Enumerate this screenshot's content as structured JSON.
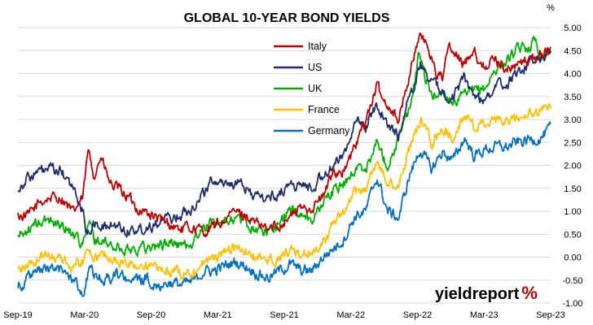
{
  "chart_data": {
    "type": "line",
    "title": "GLOBAL 10-YEAR BOND YIELDS",
    "y_unit": "%",
    "x_tick_labels": [
      "Sep-19",
      "Mar-20",
      "Sep-20",
      "Mar-21",
      "Sep-21",
      "Mar-22",
      "Sep-22",
      "Mar-23",
      "Sep-23"
    ],
    "y_ticks": [
      "-1.00",
      "-0.50",
      "0.00",
      "0.50",
      "1.00",
      "1.50",
      "2.00",
      "2.50",
      "3.00",
      "3.50",
      "4.00",
      "4.50",
      "5.00"
    ],
    "ylim": [
      -1.0,
      5.0
    ],
    "xlim": [
      "2019-09-01",
      "2023-09-30"
    ],
    "grid": "horizontal",
    "legend_position": "top-center",
    "watermark": "yieldreport %",
    "series": [
      {
        "name": "Italy",
        "color": "#c00000",
        "points": [
          [
            "2019-09-01",
            0.9
          ],
          [
            "2019-10-01",
            0.9
          ],
          [
            "2019-11-01",
            1.2
          ],
          [
            "2019-12-01",
            1.3
          ],
          [
            "2020-01-01",
            1.3
          ],
          [
            "2020-02-01",
            0.95
          ],
          [
            "2020-03-01",
            1.3
          ],
          [
            "2020-03-15",
            2.3
          ],
          [
            "2020-04-01",
            1.8
          ],
          [
            "2020-04-20",
            2.2
          ],
          [
            "2020-05-15",
            1.6
          ],
          [
            "2020-06-01",
            1.5
          ],
          [
            "2020-07-01",
            1.35
          ],
          [
            "2020-08-01",
            1.05
          ],
          [
            "2020-09-01",
            0.95
          ],
          [
            "2020-10-01",
            0.8
          ],
          [
            "2020-11-01",
            0.7
          ],
          [
            "2020-12-01",
            0.6
          ],
          [
            "2021-01-01",
            0.65
          ],
          [
            "2021-02-01",
            0.55
          ],
          [
            "2021-03-01",
            0.65
          ],
          [
            "2021-04-01",
            0.8
          ],
          [
            "2021-05-01",
            1.0
          ],
          [
            "2021-06-01",
            0.9
          ],
          [
            "2021-07-01",
            0.7
          ],
          [
            "2021-08-01",
            0.6
          ],
          [
            "2021-09-01",
            0.7
          ],
          [
            "2021-10-01",
            0.9
          ],
          [
            "2021-11-01",
            1.05
          ],
          [
            "2021-12-01",
            1.1
          ],
          [
            "2022-01-01",
            1.3
          ],
          [
            "2022-02-01",
            1.9
          ],
          [
            "2022-03-01",
            1.85
          ],
          [
            "2022-04-01",
            2.4
          ],
          [
            "2022-05-01",
            3.0
          ],
          [
            "2022-06-01",
            3.7
          ],
          [
            "2022-06-20",
            3.4
          ],
          [
            "2022-07-01",
            3.35
          ],
          [
            "2022-08-01",
            3.0
          ],
          [
            "2022-08-20",
            3.6
          ],
          [
            "2022-09-01",
            4.0
          ],
          [
            "2022-09-25",
            4.8
          ],
          [
            "2022-10-20",
            4.65
          ],
          [
            "2022-11-15",
            4.0
          ],
          [
            "2022-12-01",
            3.9
          ],
          [
            "2022-12-20",
            4.6
          ],
          [
            "2023-01-01",
            4.4
          ],
          [
            "2023-02-01",
            4.2
          ],
          [
            "2023-03-01",
            4.6
          ],
          [
            "2023-03-20",
            4.1
          ],
          [
            "2023-04-01",
            4.2
          ],
          [
            "2023-05-01",
            4.3
          ],
          [
            "2023-06-01",
            4.1
          ],
          [
            "2023-07-01",
            4.2
          ],
          [
            "2023-08-01",
            4.3
          ],
          [
            "2023-09-01",
            4.4
          ],
          [
            "2023-09-30",
            4.55
          ]
        ]
      },
      {
        "name": "US",
        "color": "#1f2d6b",
        "points": [
          [
            "2019-09-01",
            1.5
          ],
          [
            "2019-10-01",
            1.75
          ],
          [
            "2019-11-01",
            1.85
          ],
          [
            "2019-12-01",
            1.9
          ],
          [
            "2020-01-01",
            1.85
          ],
          [
            "2020-02-01",
            1.5
          ],
          [
            "2020-03-01",
            1.0
          ],
          [
            "2020-03-10",
            0.55
          ],
          [
            "2020-04-01",
            0.7
          ],
          [
            "2020-05-01",
            0.65
          ],
          [
            "2020-06-01",
            0.7
          ],
          [
            "2020-07-01",
            0.6
          ],
          [
            "2020-08-01",
            0.6
          ],
          [
            "2020-09-01",
            0.68
          ],
          [
            "2020-10-01",
            0.8
          ],
          [
            "2020-11-01",
            0.85
          ],
          [
            "2020-12-01",
            0.92
          ],
          [
            "2021-01-01",
            1.1
          ],
          [
            "2021-02-01",
            1.4
          ],
          [
            "2021-03-01",
            1.7
          ],
          [
            "2021-04-01",
            1.63
          ],
          [
            "2021-05-01",
            1.6
          ],
          [
            "2021-06-01",
            1.5
          ],
          [
            "2021-07-01",
            1.3
          ],
          [
            "2021-08-01",
            1.28
          ],
          [
            "2021-09-01",
            1.4
          ],
          [
            "2021-10-01",
            1.6
          ],
          [
            "2021-11-01",
            1.55
          ],
          [
            "2021-12-01",
            1.5
          ],
          [
            "2022-01-01",
            1.8
          ],
          [
            "2022-02-01",
            1.95
          ],
          [
            "2022-03-01",
            2.3
          ],
          [
            "2022-04-01",
            2.9
          ],
          [
            "2022-05-01",
            2.85
          ],
          [
            "2022-06-01",
            3.3
          ],
          [
            "2022-06-20",
            3.1
          ],
          [
            "2022-07-01",
            2.8
          ],
          [
            "2022-08-01",
            2.7
          ],
          [
            "2022-09-01",
            3.5
          ],
          [
            "2022-10-01",
            4.2
          ],
          [
            "2022-11-01",
            3.8
          ],
          [
            "2022-12-01",
            3.6
          ],
          [
            "2023-01-01",
            3.5
          ],
          [
            "2023-02-01",
            3.9
          ],
          [
            "2023-03-01",
            3.5
          ],
          [
            "2023-04-01",
            3.45
          ],
          [
            "2023-05-01",
            3.7
          ],
          [
            "2023-06-01",
            3.8
          ],
          [
            "2023-07-01",
            4.0
          ],
          [
            "2023-08-01",
            4.25
          ],
          [
            "2023-09-01",
            4.3
          ],
          [
            "2023-09-30",
            4.5
          ]
        ]
      },
      {
        "name": "UK",
        "color": "#00b000",
        "points": [
          [
            "2019-09-01",
            0.45
          ],
          [
            "2019-10-01",
            0.6
          ],
          [
            "2019-11-01",
            0.75
          ],
          [
            "2019-12-01",
            0.8
          ],
          [
            "2020-01-01",
            0.7
          ],
          [
            "2020-02-01",
            0.55
          ],
          [
            "2020-03-01",
            0.3
          ],
          [
            "2020-03-20",
            0.75
          ],
          [
            "2020-04-01",
            0.4
          ],
          [
            "2020-05-01",
            0.3
          ],
          [
            "2020-06-01",
            0.2
          ],
          [
            "2020-07-01",
            0.15
          ],
          [
            "2020-08-01",
            0.2
          ],
          [
            "2020-09-01",
            0.22
          ],
          [
            "2020-10-01",
            0.25
          ],
          [
            "2020-11-01",
            0.32
          ],
          [
            "2020-12-01",
            0.25
          ],
          [
            "2021-01-01",
            0.3
          ],
          [
            "2021-02-01",
            0.6
          ],
          [
            "2021-03-01",
            0.8
          ],
          [
            "2021-04-01",
            0.78
          ],
          [
            "2021-05-01",
            0.85
          ],
          [
            "2021-06-01",
            0.75
          ],
          [
            "2021-07-01",
            0.6
          ],
          [
            "2021-08-01",
            0.55
          ],
          [
            "2021-09-01",
            0.75
          ],
          [
            "2021-10-01",
            1.05
          ],
          [
            "2021-11-01",
            0.95
          ],
          [
            "2021-12-01",
            0.8
          ],
          [
            "2022-01-01",
            1.2
          ],
          [
            "2022-02-01",
            1.45
          ],
          [
            "2022-03-01",
            1.6
          ],
          [
            "2022-04-01",
            1.9
          ],
          [
            "2022-05-01",
            1.95
          ],
          [
            "2022-06-01",
            2.5
          ],
          [
            "2022-07-01",
            2.0
          ],
          [
            "2022-08-01",
            2.6
          ],
          [
            "2022-09-01",
            3.2
          ],
          [
            "2022-09-28",
            4.5
          ],
          [
            "2022-10-15",
            3.9
          ],
          [
            "2022-11-01",
            3.5
          ],
          [
            "2022-12-01",
            3.6
          ],
          [
            "2023-01-01",
            3.4
          ],
          [
            "2023-02-01",
            3.5
          ],
          [
            "2023-03-01",
            3.6
          ],
          [
            "2023-04-01",
            3.7
          ],
          [
            "2023-05-01",
            4.1
          ],
          [
            "2023-06-01",
            4.3
          ],
          [
            "2023-07-01",
            4.5
          ],
          [
            "2023-08-01",
            4.6
          ],
          [
            "2023-08-20",
            4.75
          ],
          [
            "2023-09-01",
            4.4
          ],
          [
            "2023-09-30",
            4.5
          ]
        ]
      },
      {
        "name": "France",
        "color": "#ffc000",
        "points": [
          [
            "2019-09-01",
            -0.3
          ],
          [
            "2019-10-01",
            -0.15
          ],
          [
            "2019-11-01",
            0.0
          ],
          [
            "2019-12-01",
            0.05
          ],
          [
            "2020-01-01",
            0.0
          ],
          [
            "2020-02-01",
            -0.2
          ],
          [
            "2020-03-01",
            -0.1
          ],
          [
            "2020-03-20",
            0.2
          ],
          [
            "2020-04-01",
            0.0
          ],
          [
            "2020-05-01",
            0.05
          ],
          [
            "2020-06-01",
            -0.1
          ],
          [
            "2020-07-01",
            -0.15
          ],
          [
            "2020-08-01",
            -0.18
          ],
          [
            "2020-09-01",
            -0.2
          ],
          [
            "2020-10-01",
            -0.3
          ],
          [
            "2020-11-01",
            -0.3
          ],
          [
            "2020-12-01",
            -0.35
          ],
          [
            "2021-01-01",
            -0.3
          ],
          [
            "2021-02-01",
            -0.1
          ],
          [
            "2021-03-01",
            -0.05
          ],
          [
            "2021-04-01",
            0.15
          ],
          [
            "2021-05-01",
            0.2
          ],
          [
            "2021-06-01",
            0.1
          ],
          [
            "2021-07-01",
            0.0
          ],
          [
            "2021-08-01",
            -0.1
          ],
          [
            "2021-09-01",
            0.0
          ],
          [
            "2021-10-01",
            0.15
          ],
          [
            "2021-11-01",
            0.05
          ],
          [
            "2021-12-01",
            0.1
          ],
          [
            "2022-01-01",
            0.35
          ],
          [
            "2022-02-01",
            0.7
          ],
          [
            "2022-03-01",
            0.95
          ],
          [
            "2022-04-01",
            1.4
          ],
          [
            "2022-05-01",
            1.5
          ],
          [
            "2022-06-01",
            2.1
          ],
          [
            "2022-07-01",
            1.6
          ],
          [
            "2022-08-01",
            1.55
          ],
          [
            "2022-09-01",
            2.4
          ],
          [
            "2022-10-01",
            3.0
          ],
          [
            "2022-11-01",
            2.5
          ],
          [
            "2022-12-01",
            2.8
          ],
          [
            "2023-01-01",
            2.6
          ],
          [
            "2023-02-01",
            3.1
          ],
          [
            "2023-03-01",
            2.8
          ],
          [
            "2023-04-01",
            2.95
          ],
          [
            "2023-05-01",
            2.9
          ],
          [
            "2023-06-01",
            2.95
          ],
          [
            "2023-07-01",
            3.0
          ],
          [
            "2023-08-01",
            3.1
          ],
          [
            "2023-09-01",
            3.15
          ],
          [
            "2023-09-30",
            3.3
          ]
        ]
      },
      {
        "name": "Germany",
        "color": "#0070c0",
        "points": [
          [
            "2019-09-01",
            -0.6
          ],
          [
            "2019-10-01",
            -0.45
          ],
          [
            "2019-11-01",
            -0.3
          ],
          [
            "2019-12-01",
            -0.25
          ],
          [
            "2020-01-01",
            -0.3
          ],
          [
            "2020-02-01",
            -0.45
          ],
          [
            "2020-03-01",
            -0.8
          ],
          [
            "2020-03-20",
            -0.2
          ],
          [
            "2020-04-01",
            -0.45
          ],
          [
            "2020-05-01",
            -0.5
          ],
          [
            "2020-06-01",
            -0.4
          ],
          [
            "2020-07-01",
            -0.45
          ],
          [
            "2020-08-01",
            -0.5
          ],
          [
            "2020-09-01",
            -0.5
          ],
          [
            "2020-10-01",
            -0.6
          ],
          [
            "2020-11-01",
            -0.55
          ],
          [
            "2020-12-01",
            -0.6
          ],
          [
            "2021-01-01",
            -0.55
          ],
          [
            "2021-02-01",
            -0.3
          ],
          [
            "2021-03-01",
            -0.3
          ],
          [
            "2021-04-01",
            -0.2
          ],
          [
            "2021-05-01",
            -0.1
          ],
          [
            "2021-06-01",
            -0.2
          ],
          [
            "2021-07-01",
            -0.35
          ],
          [
            "2021-08-01",
            -0.45
          ],
          [
            "2021-09-01",
            -0.3
          ],
          [
            "2021-10-01",
            -0.15
          ],
          [
            "2021-11-01",
            -0.3
          ],
          [
            "2021-12-01",
            -0.3
          ],
          [
            "2022-01-01",
            0.0
          ],
          [
            "2022-02-01",
            0.2
          ],
          [
            "2022-03-01",
            0.4
          ],
          [
            "2022-04-01",
            0.9
          ],
          [
            "2022-05-01",
            1.0
          ],
          [
            "2022-06-01",
            1.75
          ],
          [
            "2022-07-01",
            1.0
          ],
          [
            "2022-08-01",
            0.85
          ],
          [
            "2022-09-01",
            1.8
          ],
          [
            "2022-10-01",
            2.35
          ],
          [
            "2022-11-01",
            1.9
          ],
          [
            "2022-12-01",
            2.3
          ],
          [
            "2023-01-01",
            2.1
          ],
          [
            "2023-02-01",
            2.6
          ],
          [
            "2023-03-01",
            2.2
          ],
          [
            "2023-04-01",
            2.35
          ],
          [
            "2023-05-01",
            2.4
          ],
          [
            "2023-06-01",
            2.4
          ],
          [
            "2023-07-01",
            2.5
          ],
          [
            "2023-08-01",
            2.55
          ],
          [
            "2023-09-01",
            2.6
          ],
          [
            "2023-09-30",
            2.8
          ]
        ]
      }
    ]
  }
}
